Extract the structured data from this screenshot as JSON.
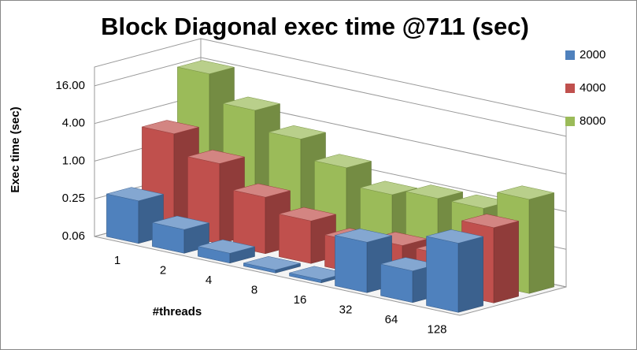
{
  "chart_data": {
    "type": "bar3d",
    "title": "Block Diagonal exec time @711 (sec)",
    "y_label": "Exec time (sec)",
    "x_label": "#threads",
    "categories": [
      "1",
      "2",
      "4",
      "8",
      "16",
      "32",
      "64",
      "128"
    ],
    "series": [
      {
        "name": "2000",
        "color": "#4f81bd",
        "values": [
          0.3,
          0.15,
          0.09,
          0.07,
          0.07,
          0.4,
          0.2,
          0.8
        ]
      },
      {
        "name": "4000",
        "color": "#c0504d",
        "values": [
          2.5,
          1.2,
          0.5,
          0.3,
          0.2,
          0.25,
          0.25,
          1.0
        ]
      },
      {
        "name": "8000",
        "color": "#9bbb59",
        "values": [
          16,
          6,
          3,
          1.5,
          0.8,
          1,
          1,
          2
        ]
      }
    ],
    "yscale": "log",
    "ylim": [
      0.0625,
      32
    ],
    "yticks": [
      {
        "value": 0.0625,
        "label": "0.06"
      },
      0.25,
      {
        "value": 1,
        "label": "1.00"
      },
      {
        "value": 4,
        "label": "4.00"
      },
      {
        "value": 16,
        "label": "16.00"
      }
    ],
    "grid": true,
    "legend": "right"
  }
}
